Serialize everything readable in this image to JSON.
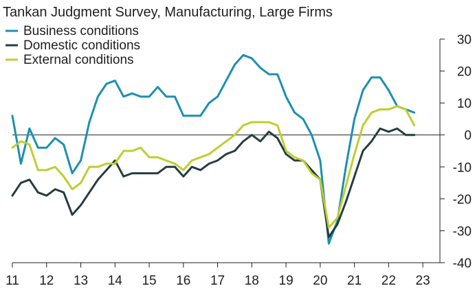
{
  "chart_data": {
    "type": "line",
    "title": "Tankan Judgment Survey, Manufacturing, Large Firms",
    "xlabel": "",
    "ylabel": "",
    "x_tick_labels": [
      "11",
      "12",
      "13",
      "14",
      "15",
      "16",
      "17",
      "18",
      "19",
      "20",
      "21",
      "22",
      "23"
    ],
    "xlim": [
      2011,
      2023.5
    ],
    "ylim": [
      -40,
      30
    ],
    "y_ticks": [
      30,
      20,
      10,
      0,
      -10,
      -20,
      -30,
      -40
    ],
    "y_tick_labels": [
      "30",
      "20",
      "10",
      "0",
      "-10",
      "-20",
      "-30",
      "-40"
    ],
    "y_axis_side": "right",
    "zero_line": true,
    "grid": false,
    "legend_position": "top-left",
    "x": [
      2011.0,
      2011.25,
      2011.5,
      2011.75,
      2012.0,
      2012.25,
      2012.5,
      2012.75,
      2013.0,
      2013.25,
      2013.5,
      2013.75,
      2014.0,
      2014.25,
      2014.5,
      2014.75,
      2015.0,
      2015.25,
      2015.5,
      2015.75,
      2016.0,
      2016.25,
      2016.5,
      2016.75,
      2017.0,
      2017.25,
      2017.5,
      2017.75,
      2018.0,
      2018.25,
      2018.5,
      2018.75,
      2019.0,
      2019.25,
      2019.5,
      2019.75,
      2020.0,
      2020.25,
      2020.5,
      2020.75,
      2021.0,
      2021.25,
      2021.5,
      2021.75,
      2022.0,
      2022.25,
      2022.5,
      2022.75
    ],
    "series": [
      {
        "name": "Business conditions",
        "color": "#1b8fb0",
        "values": [
          6,
          -9,
          2,
          -4,
          -4,
          -1,
          -3,
          -12,
          -8,
          4,
          12,
          16,
          17,
          12,
          13,
          12,
          12,
          15,
          12,
          12,
          6,
          6,
          6,
          10,
          12,
          17,
          22,
          25,
          24,
          21,
          19,
          19,
          12,
          7,
          5,
          0,
          -8,
          -34,
          -27,
          -10,
          5,
          14,
          18,
          18,
          14,
          9,
          8,
          7
        ]
      },
      {
        "name": "Domestic conditions",
        "color": "#243d3f",
        "values": [
          -19,
          -15,
          -14,
          -18,
          -19,
          -17,
          -18,
          -25,
          -22,
          -18,
          -14,
          -11,
          -8,
          -13,
          -12,
          -12,
          -12,
          -12,
          -10,
          -10,
          -13,
          -10,
          -11,
          -9,
          -8,
          -6,
          -5,
          -2,
          0,
          -2,
          1,
          -1,
          -6,
          -8,
          -8,
          -11,
          -14,
          -32,
          -28,
          -21,
          -13,
          -5,
          -2,
          2,
          1,
          2,
          0,
          0
        ]
      },
      {
        "name": "External conditions",
        "color": "#bece2c",
        "values": [
          -4,
          -2,
          -3,
          -11,
          -11,
          -10,
          -13,
          -17,
          -15,
          -10,
          -10,
          -9,
          -9,
          -5,
          -5,
          -4,
          -7,
          -7,
          -8,
          -9,
          -11,
          -8,
          -7,
          -6,
          -4,
          -2,
          0,
          3,
          4,
          4,
          4,
          3,
          -5,
          -7,
          -8,
          -12,
          -14,
          -29,
          -26,
          -16,
          -6,
          3,
          7,
          8,
          8,
          9,
          8,
          3
        ]
      }
    ]
  }
}
